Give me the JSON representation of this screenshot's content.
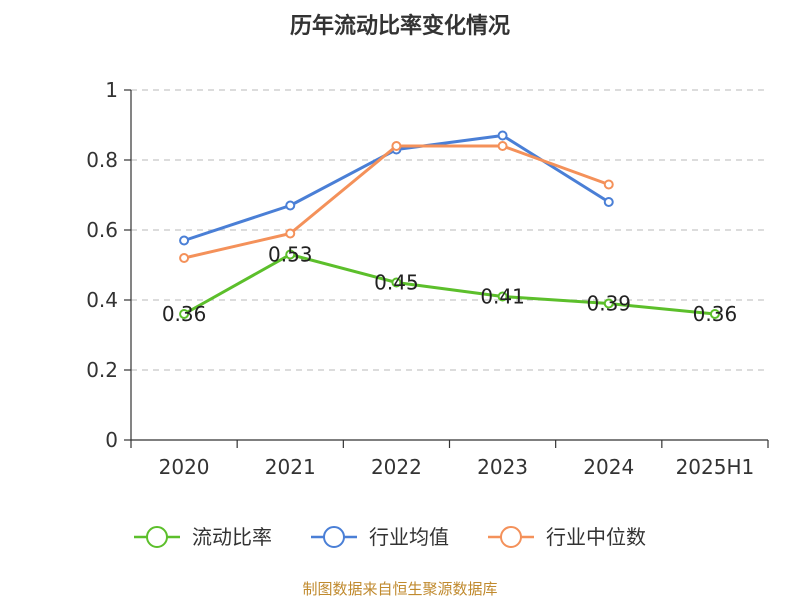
{
  "chart_data": {
    "type": "line",
    "title": "历年流动比率变化情况",
    "categories": [
      "2020",
      "2021",
      "2022",
      "2023",
      "2024",
      "2025H1"
    ],
    "ylim": [
      0,
      1
    ],
    "yticks": [
      "0",
      "0.2",
      "0.4",
      "0.6",
      "0.8",
      "1"
    ],
    "grid": true,
    "legend_position": "bottom",
    "series": [
      {
        "name": "流动比率",
        "color": "#5cbf2b",
        "values": [
          0.36,
          0.53,
          0.45,
          0.41,
          0.39,
          0.36
        ],
        "labels": [
          "0.36",
          "0.53",
          "0.45",
          "0.41",
          "0.39",
          "0.36"
        ]
      },
      {
        "name": "行业均值",
        "color": "#4a7fd6",
        "values": [
          0.57,
          0.67,
          0.83,
          0.87,
          0.68,
          null
        ]
      },
      {
        "name": "行业中位数",
        "color": "#f4915a",
        "values": [
          0.52,
          0.59,
          0.84,
          0.84,
          0.73,
          null
        ]
      }
    ]
  },
  "source": "制图数据来自恒生聚源数据库"
}
